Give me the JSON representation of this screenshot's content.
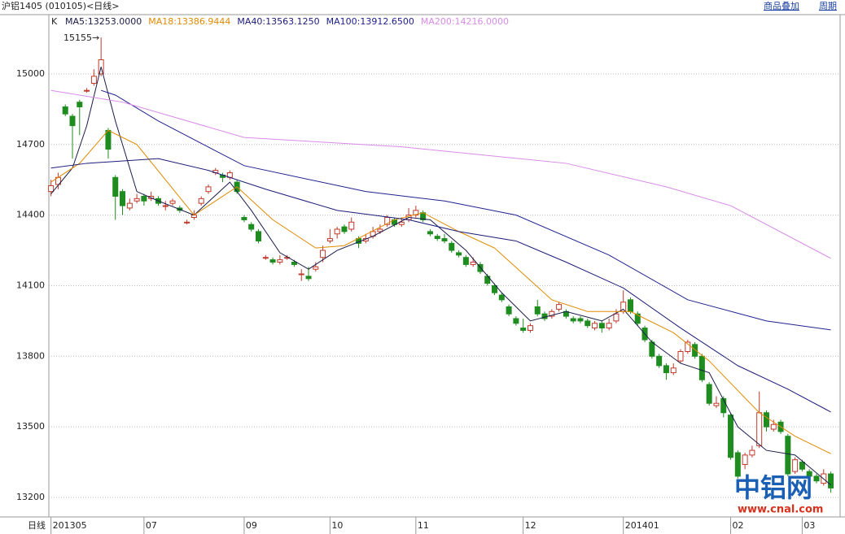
{
  "header": {
    "title": "沪铝1405 (010105)<日线>",
    "links": [
      "商品叠加",
      "周期"
    ]
  },
  "chart_data": {
    "type": "candlestick",
    "prefix": "K",
    "period_label": "日线",
    "peak_label": "15155→",
    "watermark": {
      "logo": "中铝网",
      "url": "www.cnal.com"
    },
    "ylim": [
      13117,
      15252
    ],
    "yticks": [
      13200,
      13500,
      13800,
      14100,
      14400,
      14700,
      15000
    ],
    "grid": true,
    "xlim": [
      -0.3,
      110.3
    ],
    "xticks": [
      {
        "value": 0,
        "label": "201305"
      },
      {
        "value": 13,
        "label": "07"
      },
      {
        "value": 27,
        "label": "09"
      },
      {
        "value": 39,
        "label": "10"
      },
      {
        "value": 51,
        "label": "11"
      },
      {
        "value": 66,
        "label": "12"
      },
      {
        "value": 80,
        "label": "201401"
      },
      {
        "value": 95,
        "label": "02"
      },
      {
        "value": 105,
        "label": "03"
      }
    ],
    "up_color": "#c0392b",
    "down_color": "#1e8c1e",
    "candles": [
      [
        14500,
        14550,
        14480,
        14525
      ],
      [
        14530,
        14580,
        14510,
        14560
      ],
      [
        14860,
        14870,
        14820,
        14830
      ],
      [
        14820,
        14830,
        14640,
        14780
      ],
      [
        14880,
        14890,
        14740,
        14860
      ],
      [
        14930,
        14940,
        14920,
        14930
      ],
      [
        14960,
        15020,
        14950,
        14990
      ],
      [
        15000,
        15155,
        14990,
        15060
      ],
      [
        14760,
        14770,
        14640,
        14680
      ],
      [
        14560,
        14570,
        14380,
        14480
      ],
      [
        14500,
        14510,
        14400,
        14440
      ],
      [
        14430,
        14470,
        14420,
        14450
      ],
      [
        14460,
        14490,
        14450,
        14470
      ],
      [
        14480,
        14490,
        14440,
        14460
      ],
      [
        14470,
        14500,
        14460,
        14480
      ],
      [
        14470,
        14480,
        14440,
        14450
      ],
      [
        14440,
        14460,
        14420,
        14440
      ],
      [
        14450,
        14470,
        14440,
        14460
      ],
      [
        14430,
        14440,
        14410,
        14420
      ],
      [
        14370,
        14380,
        14360,
        14370
      ],
      [
        14390,
        14420,
        14380,
        14400
      ],
      [
        14450,
        14480,
        14440,
        14470
      ],
      [
        14500,
        14530,
        14490,
        14520
      ],
      [
        14580,
        14600,
        14570,
        14590
      ],
      [
        14570,
        14580,
        14540,
        14560
      ],
      [
        14560,
        14590,
        14550,
        14580
      ],
      [
        14540,
        14550,
        14490,
        14500
      ],
      [
        14390,
        14400,
        14370,
        14380
      ],
      [
        14360,
        14370,
        14330,
        14340
      ],
      [
        14330,
        14340,
        14280,
        14290
      ],
      [
        14220,
        14230,
        14210,
        14220
      ],
      [
        14210,
        14220,
        14190,
        14200
      ],
      [
        14200,
        14230,
        14190,
        14210
      ],
      [
        14220,
        14230,
        14210,
        14220
      ],
      [
        14200,
        14210,
        14180,
        14190
      ],
      [
        14150,
        14170,
        14120,
        14150
      ],
      [
        14140,
        14180,
        14120,
        14130
      ],
      [
        14170,
        14200,
        14160,
        14180
      ],
      [
        14220,
        14270,
        14200,
        14250
      ],
      [
        14290,
        14340,
        14280,
        14300
      ],
      [
        14320,
        14350,
        14300,
        14340
      ],
      [
        14350,
        14360,
        14320,
        14330
      ],
      [
        14340,
        14390,
        14330,
        14370
      ],
      [
        14300,
        14310,
        14260,
        14280
      ],
      [
        14290,
        14320,
        14280,
        14300
      ],
      [
        14310,
        14350,
        14300,
        14330
      ],
      [
        14330,
        14360,
        14320,
        14340
      ],
      [
        14360,
        14400,
        14350,
        14390
      ],
      [
        14380,
        14390,
        14350,
        14360
      ],
      [
        14360,
        14390,
        14350,
        14370
      ],
      [
        14380,
        14430,
        14370,
        14400
      ],
      [
        14400,
        14440,
        14390,
        14420
      ],
      [
        14410,
        14420,
        14370,
        14380
      ],
      [
        14330,
        14340,
        14310,
        14320
      ],
      [
        14310,
        14320,
        14290,
        14300
      ],
      [
        14300,
        14320,
        14280,
        14290
      ],
      [
        14280,
        14290,
        14240,
        14250
      ],
      [
        14240,
        14250,
        14220,
        14230
      ],
      [
        14220,
        14230,
        14180,
        14190
      ],
      [
        14190,
        14220,
        14180,
        14200
      ],
      [
        14190,
        14200,
        14150,
        14160
      ],
      [
        14140,
        14150,
        14100,
        14110
      ],
      [
        14100,
        14110,
        14060,
        14070
      ],
      [
        14060,
        14070,
        14030,
        14040
      ],
      [
        14010,
        14020,
        13970,
        13980
      ],
      [
        13960,
        13970,
        13930,
        13940
      ],
      [
        13920,
        13960,
        13900,
        13910
      ],
      [
        13910,
        13940,
        13900,
        13930
      ],
      [
        14010,
        14040,
        13970,
        13980
      ],
      [
        13980,
        13990,
        13950,
        13960
      ],
      [
        13970,
        14000,
        13960,
        13990
      ],
      [
        14000,
        14030,
        13990,
        14020
      ],
      [
        13990,
        14000,
        13960,
        13970
      ],
      [
        13960,
        13970,
        13940,
        13950
      ],
      [
        13960,
        13970,
        13940,
        13950
      ],
      [
        13950,
        13960,
        13920,
        13930
      ],
      [
        13920,
        13950,
        13910,
        13940
      ],
      [
        13940,
        13950,
        13900,
        13920
      ],
      [
        13920,
        13960,
        13910,
        13940
      ],
      [
        13950,
        14000,
        13940,
        13980
      ],
      [
        13990,
        14080,
        13980,
        14030
      ],
      [
        14040,
        14050,
        13980,
        13990
      ],
      [
        13980,
        13990,
        13930,
        13940
      ],
      [
        13920,
        13930,
        13860,
        13870
      ],
      [
        13860,
        13870,
        13790,
        13800
      ],
      [
        13800,
        13810,
        13750,
        13760
      ],
      [
        13760,
        13770,
        13700,
        13730
      ],
      [
        13730,
        13770,
        13720,
        13750
      ],
      [
        13780,
        13830,
        13770,
        13820
      ],
      [
        13820,
        13870,
        13810,
        13860
      ],
      [
        13850,
        13860,
        13790,
        13800
      ],
      [
        13800,
        13810,
        13690,
        13700
      ],
      [
        13680,
        13690,
        13590,
        13600
      ],
      [
        13590,
        13630,
        13580,
        13600
      ],
      [
        13620,
        13630,
        13540,
        13560
      ],
      [
        13550,
        13560,
        13360,
        13370
      ],
      [
        13390,
        13400,
        13280,
        13290
      ],
      [
        13340,
        13390,
        13320,
        13380
      ],
      [
        13380,
        13420,
        13370,
        13400
      ],
      [
        13420,
        13650,
        13410,
        13560
      ],
      [
        13560,
        13570,
        13480,
        13500
      ],
      [
        13490,
        13530,
        13480,
        13510
      ],
      [
        13520,
        13530,
        13470,
        13480
      ],
      [
        13460,
        13470,
        13290,
        13300
      ],
      [
        13310,
        13370,
        13300,
        13360
      ],
      [
        13350,
        13360,
        13310,
        13320
      ],
      [
        13310,
        13320,
        13270,
        13290
      ],
      [
        13290,
        13300,
        13260,
        13270
      ],
      [
        13260,
        13320,
        13250,
        13300
      ],
      [
        13300,
        13310,
        13220,
        13240
      ]
    ],
    "series": [
      {
        "name": "MA5:13253.0000",
        "color": "#1a1a4a",
        "x": [
          0,
          3,
          5,
          7,
          9,
          12,
          15,
          20,
          25,
          28,
          32,
          36,
          40,
          45,
          50,
          53,
          58,
          63,
          67,
          72,
          77,
          80,
          84,
          88,
          92,
          96,
          100,
          104,
          109
        ],
        "values": [
          14490,
          14600,
          14780,
          15030,
          14800,
          14500,
          14460,
          14400,
          14540,
          14420,
          14240,
          14170,
          14250,
          14310,
          14390,
          14380,
          14250,
          14070,
          13950,
          13990,
          13950,
          14000,
          13860,
          13770,
          13730,
          13500,
          13400,
          13380,
          13253
        ]
      },
      {
        "name": "MA18:13386.9444",
        "color": "#e08a00",
        "x": [
          0,
          4,
          8,
          12,
          20,
          26,
          31,
          37,
          41,
          48,
          52,
          57,
          62,
          70,
          75,
          81,
          87,
          92,
          99,
          104,
          109
        ],
        "values": [
          14540,
          14620,
          14760,
          14700,
          14400,
          14520,
          14380,
          14260,
          14270,
          14380,
          14410,
          14330,
          14260,
          14040,
          13990,
          13990,
          13900,
          13780,
          13560,
          13460,
          13386
        ]
      },
      {
        "name": "MA40:13563.1250",
        "color": "#1c1c7a",
        "x": [
          0,
          5,
          15,
          22,
          30,
          40,
          50,
          57,
          65,
          72,
          80,
          88,
          96,
          103,
          109
        ],
        "values": [
          14600,
          14620,
          14640,
          14590,
          14510,
          14420,
          14380,
          14330,
          14290,
          14200,
          14090,
          13920,
          13760,
          13660,
          13563
        ]
      },
      {
        "name": "MA100:13912.6500",
        "color": "#202090",
        "x": [
          7,
          9,
          15,
          27,
          44,
          55,
          65,
          78,
          89,
          100,
          109
        ],
        "values": [
          14930,
          14910,
          14800,
          14610,
          14500,
          14460,
          14400,
          14230,
          14040,
          13950,
          13912
        ]
      },
      {
        "name": "MA200:14216.0000",
        "color": "#d98be8",
        "x": [
          0,
          10,
          27,
          49,
          72,
          86,
          95,
          109
        ],
        "values": [
          14930,
          14880,
          14730,
          14690,
          14620,
          14520,
          14440,
          14216
        ]
      }
    ]
  }
}
